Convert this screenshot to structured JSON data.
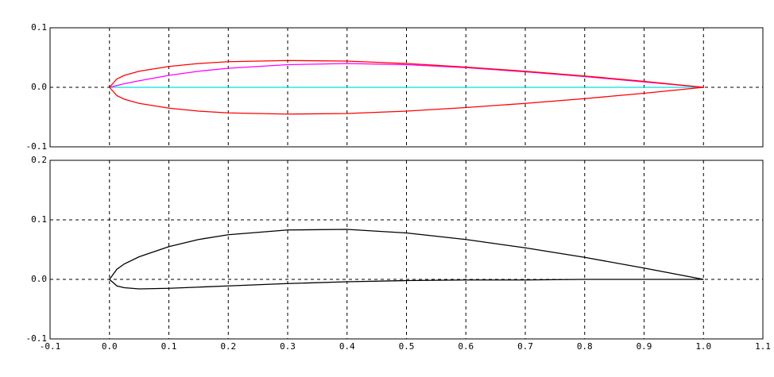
{
  "chart_data": [
    {
      "type": "line",
      "xlim": [
        -0.1,
        1.1
      ],
      "xticks": [
        -0.1,
        0,
        0.1,
        0.2,
        0.3,
        0.4,
        0.5,
        0.6,
        0.7,
        0.8,
        0.9,
        1.0,
        1.1
      ],
      "ylim": [
        -0.1,
        0.1
      ],
      "yticks": [
        {
          "value": -0.1,
          "label": "-0.1"
        },
        {
          "value": 0,
          "label": "0.0"
        },
        {
          "value": 0.1,
          "label": "0.1"
        }
      ],
      "grid": true,
      "series": [
        {
          "color": "#00e0e0",
          "x": [
            0,
            1.0
          ],
          "values": [
            0,
            0
          ]
        },
        {
          "color": "#ff00ff",
          "x": [
            0,
            0.0125,
            0.025,
            0.05,
            0.1,
            0.15,
            0.2,
            0.3,
            0.4,
            0.5,
            0.6,
            0.7,
            0.8,
            0.9,
            1.0
          ],
          "values": [
            0,
            0.003,
            0.006,
            0.011,
            0.02,
            0.027,
            0.032,
            0.038,
            0.04,
            0.038,
            0.033,
            0.026,
            0.018,
            0.009,
            0
          ]
        },
        {
          "color": "#ff0000",
          "x": [
            0,
            0.0125,
            0.025,
            0.05,
            0.1,
            0.15,
            0.2,
            0.3,
            0.4,
            0.5,
            0.6,
            0.7,
            0.8,
            0.9,
            1.0
          ],
          "values": [
            0,
            0.014,
            0.02,
            0.027,
            0.035,
            0.04,
            0.043,
            0.045,
            0.044,
            0.04,
            0.034,
            0.027,
            0.019,
            0.01,
            0
          ]
        },
        {
          "color": "#ff0000",
          "x": [
            0,
            0.0125,
            0.025,
            0.05,
            0.1,
            0.15,
            0.2,
            0.3,
            0.4,
            0.5,
            0.6,
            0.7,
            0.8,
            0.9,
            1.0
          ],
          "values": [
            0,
            -0.014,
            -0.02,
            -0.027,
            -0.035,
            -0.04,
            -0.043,
            -0.045,
            -0.044,
            -0.04,
            -0.034,
            -0.027,
            -0.019,
            -0.01,
            0
          ]
        }
      ]
    },
    {
      "type": "line",
      "xlim": [
        -0.1,
        1.1
      ],
      "xticks": [
        {
          "value": -0.1,
          "label": "-0.1"
        },
        {
          "value": 0,
          "label": "0.0"
        },
        0.1,
        0.2,
        0.3,
        0.4,
        0.5,
        0.6,
        0.7,
        0.8,
        0.9,
        {
          "value": 1.0,
          "label": "1.0"
        },
        1.1
      ],
      "ylim": [
        -0.1,
        0.2
      ],
      "yticks": [
        {
          "value": -0.1,
          "label": "-0.1"
        },
        {
          "value": 0,
          "label": "0.0"
        },
        0.1,
        0.2
      ],
      "grid": true,
      "series": [
        {
          "color": "#000000",
          "x": [
            0,
            0.0125,
            0.025,
            0.05,
            0.1,
            0.15,
            0.2,
            0.3,
            0.4,
            0.5,
            0.6,
            0.7,
            0.8,
            0.9,
            1.0
          ],
          "values": [
            0,
            0.017,
            0.026,
            0.038,
            0.055,
            0.067,
            0.075,
            0.083,
            0.084,
            0.078,
            0.067,
            0.053,
            0.037,
            0.019,
            0
          ]
        },
        {
          "color": "#000000",
          "x": [
            0,
            0.0125,
            0.025,
            0.05,
            0.1,
            0.15,
            0.2,
            0.3,
            0.4,
            0.5,
            0.6,
            0.7,
            0.8,
            0.9,
            1.0
          ],
          "values": [
            0,
            -0.011,
            -0.014,
            -0.016,
            -0.015,
            -0.013,
            -0.011,
            -0.007,
            -0.004,
            -0.002,
            -0.001,
            -0.001,
            0,
            0,
            0
          ]
        }
      ]
    }
  ]
}
